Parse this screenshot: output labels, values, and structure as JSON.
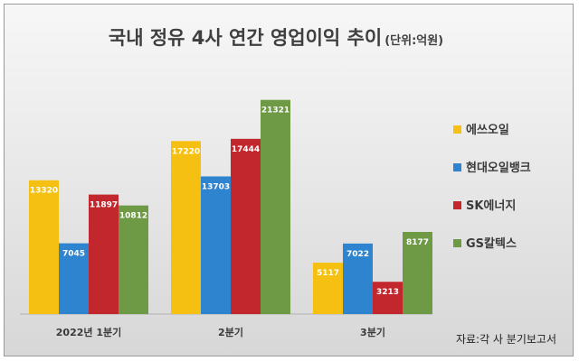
{
  "chart_data": {
    "type": "bar",
    "title": "국내 정유 4사 연간 영업이익 추이",
    "unit": "(단위:억원)",
    "categories": [
      "2022년 1분기",
      "2분기",
      "3분기"
    ],
    "series": [
      {
        "name": "에쓰오일",
        "color": "#f5c011",
        "values": [
          13320,
          17220,
          5117
        ]
      },
      {
        "name": "현대오일뱅크",
        "color": "#2f84cf",
        "values": [
          7045,
          13703,
          7022
        ]
      },
      {
        "name": "SK에너지",
        "color": "#c1272d",
        "values": [
          11897,
          17444,
          3213
        ]
      },
      {
        "name": "GS칼텍스",
        "color": "#6e9a46",
        "values": [
          10812,
          21321,
          8177
        ]
      }
    ],
    "ylim": [
      0,
      23000
    ],
    "grid": false,
    "legend_position": "right",
    "source": "자료:각 사 분기보고서"
  }
}
